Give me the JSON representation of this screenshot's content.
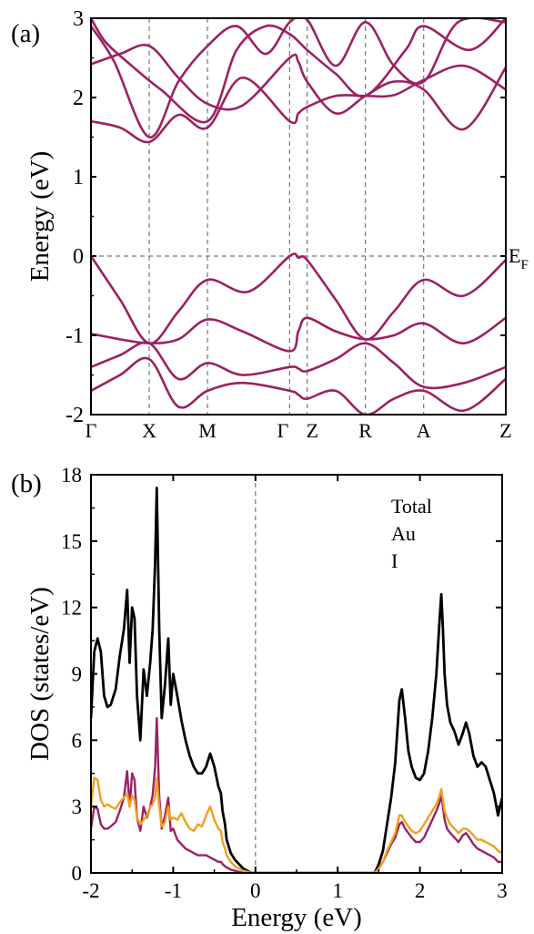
{
  "chart_data": [
    {
      "panel_label": "(a)",
      "type": "line",
      "ylabel": "Energy (eV)",
      "ylim": [
        -2,
        3
      ],
      "yticks": [
        "-2",
        "-1",
        "0",
        "1",
        "2",
        "3"
      ],
      "kpoints": [
        {
          "label": "Γ",
          "pos": 0.0
        },
        {
          "label": "X",
          "pos": 1.0
        },
        {
          "label": "M",
          "pos": 2.0
        },
        {
          "label": "Γ",
          "pos": 3.41
        },
        {
          "label": "Z",
          "pos": 3.71
        },
        {
          "label": "R",
          "pos": 4.71
        },
        {
          "label": "A",
          "pos": 5.71
        },
        {
          "label": "Z",
          "pos": 7.12
        }
      ],
      "fermi_label": "E",
      "fermi_sub": "F",
      "fermi_level": 0,
      "band_color": "#9b2163",
      "bands": [
        {
          "name": "",
          "x": [
            0,
            0.5,
            1.0,
            1.5,
            2.0,
            2.6,
            3.41,
            3.56,
            3.71,
            4.2,
            4.71,
            5.2,
            5.71,
            6.4,
            7.12
          ],
          "y": [
            1.7,
            1.62,
            1.44,
            1.78,
            1.62,
            2.25,
            1.7,
            1.8,
            1.88,
            2.02,
            2.02,
            2.03,
            2.22,
            2.4,
            2.1
          ]
        },
        {
          "name": "",
          "x": [
            0,
            0.5,
            1.0,
            1.5,
            2.0,
            2.6,
            3.41,
            3.56,
            3.71,
            4.2,
            4.71,
            5.2,
            5.71,
            6.4,
            7.12
          ],
          "y": [
            2.42,
            2.55,
            2.65,
            2.25,
            1.92,
            1.9,
            2.5,
            2.45,
            2.2,
            1.8,
            2.02,
            2.2,
            2.1,
            1.6,
            2.38
          ]
        },
        {
          "name": "",
          "x": [
            0,
            0.4,
            1.0,
            1.5,
            2.0,
            2.5,
            3.0,
            3.41,
            3.71,
            4.2,
            4.71,
            5.2,
            5.71,
            6.3,
            7.12
          ],
          "y": [
            2.9,
            2.45,
            1.5,
            2.2,
            2.65,
            2.9,
            2.55,
            2.95,
            2.98,
            2.4,
            2.95,
            2.4,
            2.2,
            2.95,
            2.95
          ]
        },
        {
          "name": "",
          "x": [
            0,
            0.25,
            0.7,
            1.2,
            2.0,
            2.5,
            3.0,
            3.41,
            3.71,
            4.2,
            4.71,
            5.4,
            5.71,
            6.5,
            7.12
          ],
          "y": [
            3.0,
            2.7,
            2.4,
            2.1,
            1.7,
            2.6,
            2.9,
            2.8,
            2.6,
            2.3,
            2.02,
            2.6,
            2.9,
            2.6,
            3.0
          ]
        },
        {
          "name": "",
          "x": [
            0,
            0.5,
            1.0,
            1.5,
            2.0,
            2.7,
            3.41,
            3.56,
            3.71,
            4.2,
            4.71,
            5.2,
            5.71,
            6.4,
            7.12
          ],
          "y": [
            0.0,
            -0.55,
            -1.1,
            -0.7,
            -0.3,
            -0.45,
            0.0,
            -0.02,
            -0.05,
            -0.55,
            -1.05,
            -0.7,
            -0.3,
            -0.5,
            -0.05
          ]
        },
        {
          "name": "",
          "x": [
            0,
            0.5,
            1.0,
            1.5,
            2.0,
            2.6,
            3.41,
            3.56,
            3.71,
            4.2,
            4.71,
            5.2,
            5.71,
            6.4,
            7.12
          ],
          "y": [
            -0.98,
            -1.05,
            -1.1,
            -1.05,
            -0.8,
            -0.95,
            -1.2,
            -0.95,
            -0.78,
            -0.95,
            -1.05,
            -1.0,
            -0.85,
            -1.1,
            -0.78
          ]
        },
        {
          "name": "",
          "x": [
            0,
            0.5,
            1.0,
            1.5,
            2.0,
            2.6,
            3.41,
            3.56,
            3.71,
            4.2,
            4.71,
            5.2,
            5.71,
            6.4,
            7.12
          ],
          "y": [
            -1.4,
            -1.25,
            -1.1,
            -1.55,
            -1.35,
            -1.5,
            -1.4,
            -1.42,
            -1.45,
            -1.3,
            -1.1,
            -1.35,
            -1.65,
            -1.6,
            -1.4
          ]
        },
        {
          "name": "",
          "x": [
            0,
            0.5,
            1.0,
            1.5,
            2.0,
            2.6,
            3.41,
            3.56,
            3.71,
            4.2,
            4.71,
            5.2,
            5.71,
            6.4,
            7.12
          ],
          "y": [
            -1.7,
            -1.5,
            -1.3,
            -1.9,
            -1.7,
            -1.6,
            -1.7,
            -1.75,
            -1.8,
            -1.7,
            -2.0,
            -1.8,
            -1.7,
            -1.95,
            -1.55
          ]
        }
      ]
    },
    {
      "panel_label": "(b)",
      "type": "line",
      "xlabel": "Energy (eV)",
      "ylabel": "DOS (states/eV)",
      "xlim": [
        -2,
        3
      ],
      "ylim": [
        0,
        18
      ],
      "xticks": [
        "-2",
        "-1",
        "0",
        "1",
        "2",
        "3"
      ],
      "yticks": [
        "0",
        "3",
        "6",
        "9",
        "12",
        "15",
        "18"
      ],
      "series": [
        {
          "name": "Total",
          "color": "#000000",
          "x": [
            -2.0,
            -1.96,
            -1.92,
            -1.88,
            -1.84,
            -1.8,
            -1.76,
            -1.7,
            -1.65,
            -1.6,
            -1.56,
            -1.53,
            -1.5,
            -1.47,
            -1.44,
            -1.4,
            -1.36,
            -1.32,
            -1.28,
            -1.25,
            -1.22,
            -1.2,
            -1.17,
            -1.14,
            -1.1,
            -1.06,
            -1.03,
            -1.0,
            -0.95,
            -0.9,
            -0.85,
            -0.8,
            -0.75,
            -0.7,
            -0.65,
            -0.6,
            -0.55,
            -0.5,
            -0.45,
            -0.42,
            -0.4,
            -0.37,
            -0.35,
            -0.3,
            -0.25,
            -0.2,
            -0.15,
            -0.1,
            -0.05,
            0.0,
            0.5,
            1.0,
            1.45,
            1.5,
            1.55,
            1.6,
            1.65,
            1.7,
            1.75,
            1.78,
            1.82,
            1.86,
            1.9,
            1.95,
            2.0,
            2.05,
            2.1,
            2.15,
            2.2,
            2.24,
            2.26,
            2.28,
            2.3,
            2.33,
            2.37,
            2.42,
            2.47,
            2.52,
            2.56,
            2.6,
            2.65,
            2.7,
            2.75,
            2.8,
            2.85,
            2.9,
            2.95,
            3.0
          ],
          "y": [
            7.0,
            10.0,
            10.6,
            10.0,
            8.0,
            7.5,
            7.6,
            8.3,
            9.8,
            11.0,
            12.8,
            9.5,
            12.0,
            11.5,
            8.0,
            6.0,
            9.2,
            8.0,
            9.5,
            11.0,
            14.0,
            17.4,
            11.0,
            7.0,
            8.5,
            10.6,
            7.6,
            9.0,
            8.0,
            6.9,
            6.0,
            5.3,
            4.8,
            4.5,
            4.5,
            4.8,
            5.4,
            4.8,
            3.9,
            3.6,
            2.8,
            2.2,
            1.5,
            0.9,
            0.6,
            0.4,
            0.2,
            0.1,
            0.0,
            0.0,
            0.0,
            0.0,
            0.0,
            0.4,
            1.0,
            2.2,
            3.4,
            5.0,
            7.8,
            8.3,
            7.0,
            5.5,
            4.8,
            4.3,
            4.2,
            4.5,
            5.5,
            7.0,
            9.0,
            11.5,
            12.6,
            11.0,
            9.0,
            7.6,
            6.8,
            6.4,
            5.8,
            6.3,
            6.8,
            6.3,
            5.3,
            4.8,
            5.0,
            4.8,
            4.2,
            3.6,
            2.6,
            3.4
          ]
        },
        {
          "name": "Au",
          "color": "#f0a020",
          "x": [
            -2.0,
            -1.96,
            -1.92,
            -1.88,
            -1.84,
            -1.8,
            -1.76,
            -1.7,
            -1.65,
            -1.6,
            -1.56,
            -1.53,
            -1.5,
            -1.47,
            -1.44,
            -1.4,
            -1.36,
            -1.32,
            -1.28,
            -1.25,
            -1.22,
            -1.2,
            -1.17,
            -1.14,
            -1.1,
            -1.06,
            -1.03,
            -1.0,
            -0.95,
            -0.9,
            -0.85,
            -0.8,
            -0.75,
            -0.7,
            -0.65,
            -0.6,
            -0.55,
            -0.5,
            -0.45,
            -0.42,
            -0.4,
            -0.37,
            -0.35,
            -0.3,
            -0.25,
            -0.2,
            -0.15,
            -0.1,
            -0.05,
            0.0,
            0.5,
            1.0,
            1.45,
            1.5,
            1.55,
            1.6,
            1.65,
            1.7,
            1.75,
            1.78,
            1.82,
            1.86,
            1.9,
            1.95,
            2.0,
            2.05,
            2.1,
            2.15,
            2.2,
            2.24,
            2.26,
            2.28,
            2.3,
            2.33,
            2.37,
            2.42,
            2.47,
            2.52,
            2.56,
            2.6,
            2.65,
            2.7,
            2.75,
            2.8,
            2.85,
            2.9,
            2.95,
            3.0
          ],
          "y": [
            3.0,
            4.3,
            4.2,
            3.3,
            3.0,
            3.1,
            3.0,
            2.9,
            3.2,
            3.4,
            3.6,
            3.0,
            3.5,
            3.3,
            2.5,
            2.2,
            2.4,
            2.6,
            3.0,
            3.1,
            3.4,
            4.3,
            3.0,
            2.1,
            2.3,
            3.0,
            2.4,
            2.5,
            2.4,
            2.7,
            2.3,
            2.0,
            1.9,
            2.2,
            2.1,
            2.6,
            3.0,
            2.4,
            2.0,
            1.9,
            1.4,
            1.1,
            0.8,
            0.5,
            0.3,
            0.2,
            0.1,
            0.05,
            0.0,
            0.0,
            0.0,
            0.0,
            0.0,
            0.2,
            0.5,
            1.0,
            1.4,
            1.8,
            2.6,
            2.6,
            2.3,
            2.1,
            1.9,
            1.8,
            1.9,
            2.2,
            2.5,
            2.8,
            3.1,
            3.5,
            3.8,
            3.3,
            2.8,
            2.5,
            2.2,
            2.0,
            1.8,
            2.0,
            2.0,
            1.9,
            1.7,
            1.5,
            1.5,
            1.4,
            1.3,
            1.2,
            1.0,
            0.9
          ]
        },
        {
          "name": "I",
          "color": "#9b2163",
          "x": [
            -2.0,
            -1.96,
            -1.92,
            -1.88,
            -1.84,
            -1.8,
            -1.76,
            -1.7,
            -1.65,
            -1.6,
            -1.56,
            -1.53,
            -1.5,
            -1.47,
            -1.44,
            -1.4,
            -1.36,
            -1.32,
            -1.28,
            -1.25,
            -1.22,
            -1.2,
            -1.17,
            -1.14,
            -1.1,
            -1.06,
            -1.03,
            -1.0,
            -0.95,
            -0.9,
            -0.85,
            -0.8,
            -0.75,
            -0.7,
            -0.65,
            -0.6,
            -0.55,
            -0.5,
            -0.45,
            -0.42,
            -0.4,
            -0.37,
            -0.35,
            -0.3,
            -0.25,
            -0.2,
            -0.15,
            -0.1,
            -0.05,
            0.0,
            0.5,
            1.0,
            1.45,
            1.5,
            1.55,
            1.6,
            1.65,
            1.7,
            1.75,
            1.78,
            1.82,
            1.86,
            1.9,
            1.95,
            2.0,
            2.05,
            2.1,
            2.15,
            2.2,
            2.24,
            2.26,
            2.28,
            2.3,
            2.33,
            2.37,
            2.42,
            2.47,
            2.52,
            2.56,
            2.6,
            2.65,
            2.7,
            2.75,
            2.8,
            2.85,
            2.9,
            2.95,
            3.0
          ],
          "y": [
            2.0,
            3.0,
            2.9,
            2.2,
            2.0,
            2.0,
            2.1,
            2.3,
            2.8,
            3.4,
            4.6,
            3.0,
            4.5,
            4.2,
            2.5,
            1.9,
            3.0,
            2.5,
            3.0,
            3.5,
            4.8,
            7.0,
            3.5,
            2.0,
            2.6,
            3.4,
            1.9,
            2.0,
            1.5,
            1.3,
            1.1,
            1.0,
            0.9,
            0.8,
            0.8,
            0.8,
            0.7,
            0.6,
            0.5,
            0.5,
            0.4,
            0.3,
            0.25,
            0.15,
            0.1,
            0.05,
            0.0,
            0.0,
            0.0,
            0.0,
            0.0,
            0.0,
            0.0,
            0.2,
            0.5,
            0.9,
            1.3,
            1.6,
            2.2,
            2.3,
            2.0,
            1.8,
            1.6,
            1.4,
            1.4,
            1.6,
            2.0,
            2.4,
            2.8,
            3.2,
            3.5,
            3.0,
            2.4,
            2.0,
            1.8,
            1.6,
            1.4,
            1.7,
            1.8,
            1.6,
            1.3,
            1.1,
            1.0,
            0.9,
            0.8,
            0.7,
            0.5,
            0.5
          ]
        }
      ]
    }
  ]
}
